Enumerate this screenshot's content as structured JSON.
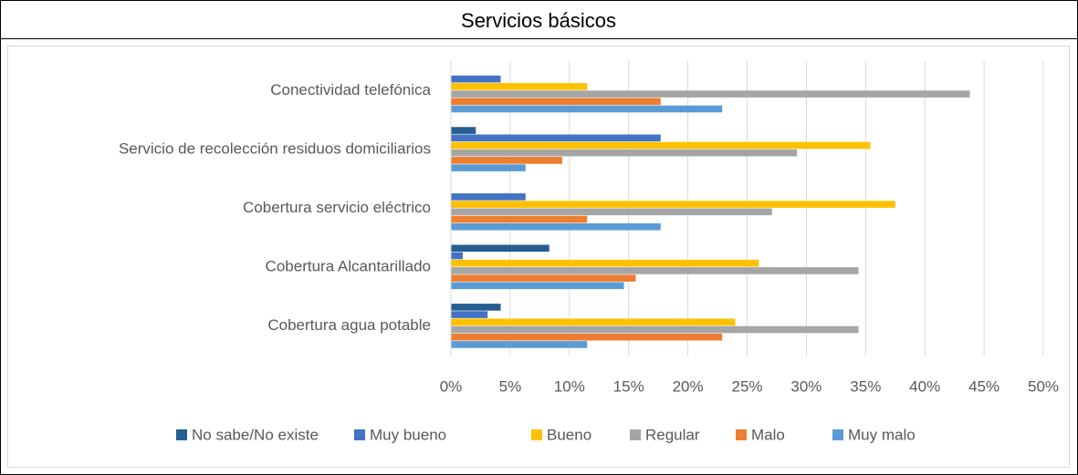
{
  "chart_data": {
    "type": "hbar",
    "title": "Servicios básicos",
    "categories": [
      "Conectividad telefónica",
      "Servicio de recolección residuos domiciliarios",
      "Cobertura servicio eléctrico",
      "Cobertura Alcantarillado",
      "Cobertura agua potable"
    ],
    "series": [
      {
        "name": "No sabe/No existe",
        "color": "#255e91",
        "values": [
          0,
          2.1,
          0,
          8.3,
          4.2
        ]
      },
      {
        "name": "Muy bueno",
        "color": "#4472c4",
        "values": [
          4.2,
          17.7,
          6.3,
          1.0,
          3.1
        ]
      },
      {
        "name": "Bueno",
        "color": "#ffc000",
        "values": [
          11.5,
          35.4,
          37.5,
          26.0,
          24.0
        ]
      },
      {
        "name": "Regular",
        "color": "#a5a5a5",
        "values": [
          43.8,
          29.2,
          27.1,
          34.4,
          34.4
        ]
      },
      {
        "name": "Malo",
        "color": "#ed7d31",
        "values": [
          17.7,
          9.4,
          11.5,
          15.6,
          22.9
        ]
      },
      {
        "name": "Muy malo",
        "color": "#5b9bd5",
        "values": [
          22.9,
          6.3,
          17.7,
          14.6,
          11.5
        ]
      }
    ],
    "xlim": [
      0,
      50
    ],
    "xticks": [
      {
        "value": 0,
        "label": "0%"
      },
      {
        "value": 5,
        "label": "5%"
      },
      {
        "value": 10,
        "label": "10%"
      },
      {
        "value": 15,
        "label": "15%"
      },
      {
        "value": 20,
        "label": "20%"
      },
      {
        "value": 25,
        "label": "25%"
      },
      {
        "value": 30,
        "label": "30%"
      },
      {
        "value": 35,
        "label": "35%"
      },
      {
        "value": 40,
        "label": "40%"
      },
      {
        "value": 45,
        "label": "45%"
      },
      {
        "value": 50,
        "label": "50%"
      }
    ],
    "grid": true,
    "legend": "bottom"
  }
}
